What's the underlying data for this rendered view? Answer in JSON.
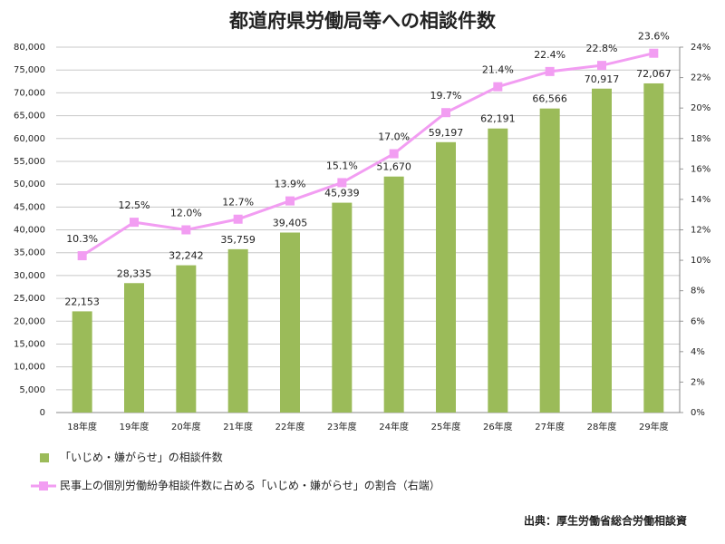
{
  "chart_data": {
    "type": "bar_line",
    "title": "都道府県労働局等への相談件数",
    "categories": [
      "18年度",
      "19年度",
      "20年度",
      "21年度",
      "22年度",
      "23年度",
      "24年度",
      "25年度",
      "26年度",
      "27年度",
      "28年度",
      "29年度"
    ],
    "series": [
      {
        "name": "「いじめ・嫌がらせ」の相談件数",
        "type": "bar",
        "color": "#9bbb59",
        "values": [
          22153,
          28335,
          32242,
          35759,
          39405,
          45939,
          51670,
          59197,
          62191,
          66566,
          70917,
          72067
        ],
        "value_labels": [
          "22,153",
          "28,335",
          "32,242",
          "35,759",
          "39,405",
          "45,939",
          "51,670",
          "59,197",
          "62,191",
          "66,566",
          "70,917",
          "72,067"
        ]
      },
      {
        "name": "民事上の個別労働紛争相談件数に占める「いじめ・嫌がらせ」の割合（右端）",
        "type": "line",
        "color": "#f29df2",
        "axis": "y2",
        "values": [
          10.3,
          12.5,
          12.0,
          12.7,
          13.9,
          15.1,
          17.0,
          19.7,
          21.4,
          22.4,
          22.8,
          23.6
        ],
        "value_labels": [
          "10.3%",
          "12.5%",
          "12.0%",
          "12.7%",
          "13.9%",
          "15.1%",
          "17.0%",
          "19.7%",
          "21.4%",
          "22.4%",
          "22.8%",
          "23.6%"
        ]
      }
    ],
    "ylim": [
      0,
      80000
    ],
    "yticks": [
      0,
      {
        "value": 5000,
        "label": "5,000"
      },
      {
        "value": 10000,
        "label": "10,000"
      },
      {
        "value": 15000,
        "label": "15,000"
      },
      {
        "value": 20000,
        "label": "20,000"
      },
      {
        "value": 25000,
        "label": "25,000"
      },
      {
        "value": 30000,
        "label": "30,000"
      },
      {
        "value": 35000,
        "label": "35,000"
      },
      {
        "value": 40000,
        "label": "40,000"
      },
      {
        "value": 45000,
        "label": "45,000"
      },
      {
        "value": 50000,
        "label": "50,000"
      },
      {
        "value": 55000,
        "label": "55,000"
      },
      {
        "value": 60000,
        "label": "60,000"
      },
      {
        "value": 65000,
        "label": "65,000"
      },
      {
        "value": 70000,
        "label": "70,000"
      },
      {
        "value": 75000,
        "label": "75,000"
      },
      {
        "value": 80000,
        "label": "80,000"
      }
    ],
    "y2lim": [
      0,
      24
    ],
    "y2ticks": [
      {
        "value": 0,
        "label": "0%"
      },
      {
        "value": 2,
        "label": "2%"
      },
      {
        "value": 4,
        "label": "4%"
      },
      {
        "value": 6,
        "label": "6%"
      },
      {
        "value": 8,
        "label": "8%"
      },
      {
        "value": 10,
        "label": "10%"
      },
      {
        "value": 12,
        "label": "12%"
      },
      {
        "value": 14,
        "label": "14%"
      },
      {
        "value": 16,
        "label": "16%"
      },
      {
        "value": 18,
        "label": "18%"
      },
      {
        "value": 20,
        "label": "20%"
      },
      {
        "value": 22,
        "label": "22%"
      },
      {
        "value": 24,
        "label": "24%"
      }
    ],
    "grid": true,
    "legend": "bottom",
    "source": "出典：厚生労働省総合労働相談資"
  }
}
